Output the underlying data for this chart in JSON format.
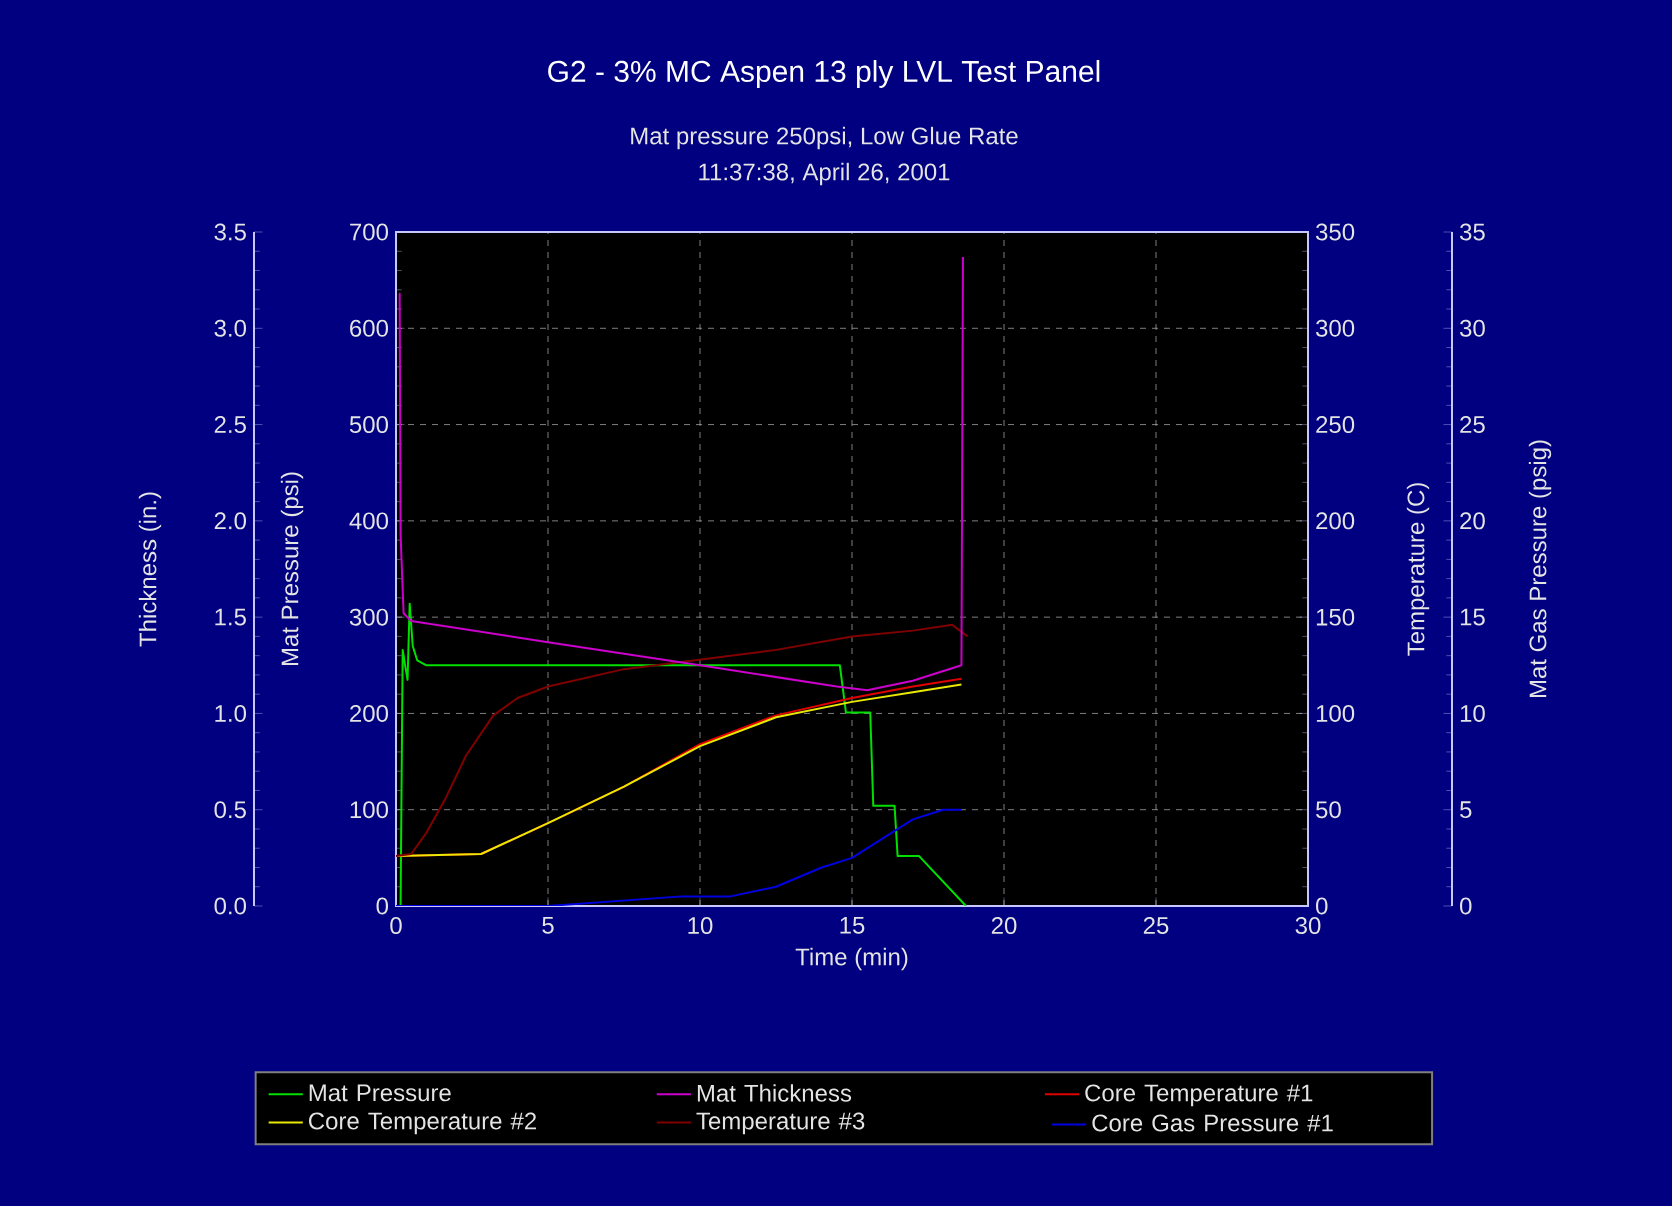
{
  "chart_data": [
    {
      "type": "line",
      "title": "G2 - 3% MC Aspen 13 ply LVL Test Panel",
      "subtitle": "Mat pressure 250psi, Low Glue Rate",
      "annotations": [
        "11:37:38, April 26, 2001"
      ],
      "xlabel": "Time (min)",
      "ylabel": "Mat Pressure (psi)",
      "y2label": "Temperature (C)",
      "y3label": "Thickness (in.)",
      "xlim": [
        0,
        30
      ],
      "xticks": [
        0,
        5,
        10,
        15,
        20,
        25,
        30
      ],
      "ylim": [
        0,
        700
      ],
      "yticks": [
        0,
        100,
        200,
        300,
        400,
        500,
        600,
        700
      ],
      "y2lim": [
        0,
        350
      ],
      "y2ticks": [
        0,
        50,
        100,
        150,
        200,
        250,
        300,
        350
      ],
      "y3lim": [
        0,
        3.5
      ],
      "y3ticks": [
        {
          "value": 0,
          "label": "0.0"
        },
        0.5,
        {
          "value": 1,
          "label": "1.0"
        },
        1.5,
        {
          "value": 2,
          "label": "2.0"
        },
        2.5,
        {
          "value": 3,
          "label": "3.0"
        },
        3.5
      ],
      "grid": true,
      "legend": "bottom",
      "series": [
        {
          "name": "Mat Pressure",
          "color": "#00e000",
          "x": [
            0,
            0.15,
            0.22,
            0.3,
            0.38,
            0.45,
            0.55,
            0.7,
            1.0,
            14.6,
            14.8,
            15.6,
            15.7,
            16.4,
            16.5,
            17.2,
            18.75
          ],
          "values": [
            0,
            0,
            266,
            250,
            235,
            314,
            270,
            255,
            250,
            250,
            201,
            201,
            104,
            104,
            52,
            52,
            0
          ]
        },
        {
          "name": "Mat Thickness",
          "color": "#cc00cc",
          "axis": "y3",
          "x": [
            0.1,
            0.12,
            0.15,
            0.25,
            0.5,
            5,
            10,
            14.5,
            15.5,
            17,
            18.6,
            18.65
          ],
          "values": [
            3.18,
            3.18,
            1.93,
            1.52,
            1.48,
            1.37,
            1.25,
            1.14,
            1.12,
            1.17,
            1.25,
            3.37
          ]
        },
        {
          "name": "Core Temperature #1",
          "color": "#e00000",
          "axis": "y2",
          "x": [
            0,
            2.8,
            5,
            7.5,
            10,
            12.5,
            15,
            17,
            18.6
          ],
          "values": [
            26,
            27,
            43,
            62,
            84,
            99,
            108,
            114,
            118
          ]
        },
        {
          "name": "Core Temperature #2",
          "color": "#e8e800",
          "axis": "y2",
          "x": [
            0,
            2.8,
            5,
            7.5,
            10,
            12.5,
            15,
            17,
            18.6
          ],
          "values": [
            26,
            27,
            43,
            62,
            83,
            98,
            106,
            111,
            115
          ]
        },
        {
          "name": "Temperature #3",
          "color": "#800000",
          "axis": "y2",
          "x": [
            0,
            0.5,
            1,
            1.6,
            2.3,
            3.2,
            4,
            5,
            7.5,
            10,
            12.5,
            15,
            17,
            18.3,
            18.8
          ],
          "values": [
            26,
            27,
            38,
            55,
            78,
            99,
            108,
            114,
            123,
            128,
            133,
            140,
            143,
            146,
            140
          ]
        }
      ]
    },
    {
      "type": "line",
      "ylabel": "Mat Gas Pressure (psig)",
      "xlim": [
        0,
        30
      ],
      "ylim": [
        0,
        35
      ],
      "yticks": [
        0,
        5,
        10,
        15,
        20,
        25,
        30,
        35
      ],
      "tick_labels": "y",
      "legend": "bottom",
      "series": [
        {
          "name": "Core Gas Pressure #1",
          "color": "#0000e0",
          "x": [
            0,
            5,
            9.4,
            11,
            12.5,
            14,
            15,
            16,
            17,
            18,
            18.6
          ],
          "values": [
            0,
            0,
            0.5,
            0.5,
            1,
            2,
            2.5,
            3.5,
            4.5,
            5,
            5
          ]
        }
      ]
    }
  ]
}
